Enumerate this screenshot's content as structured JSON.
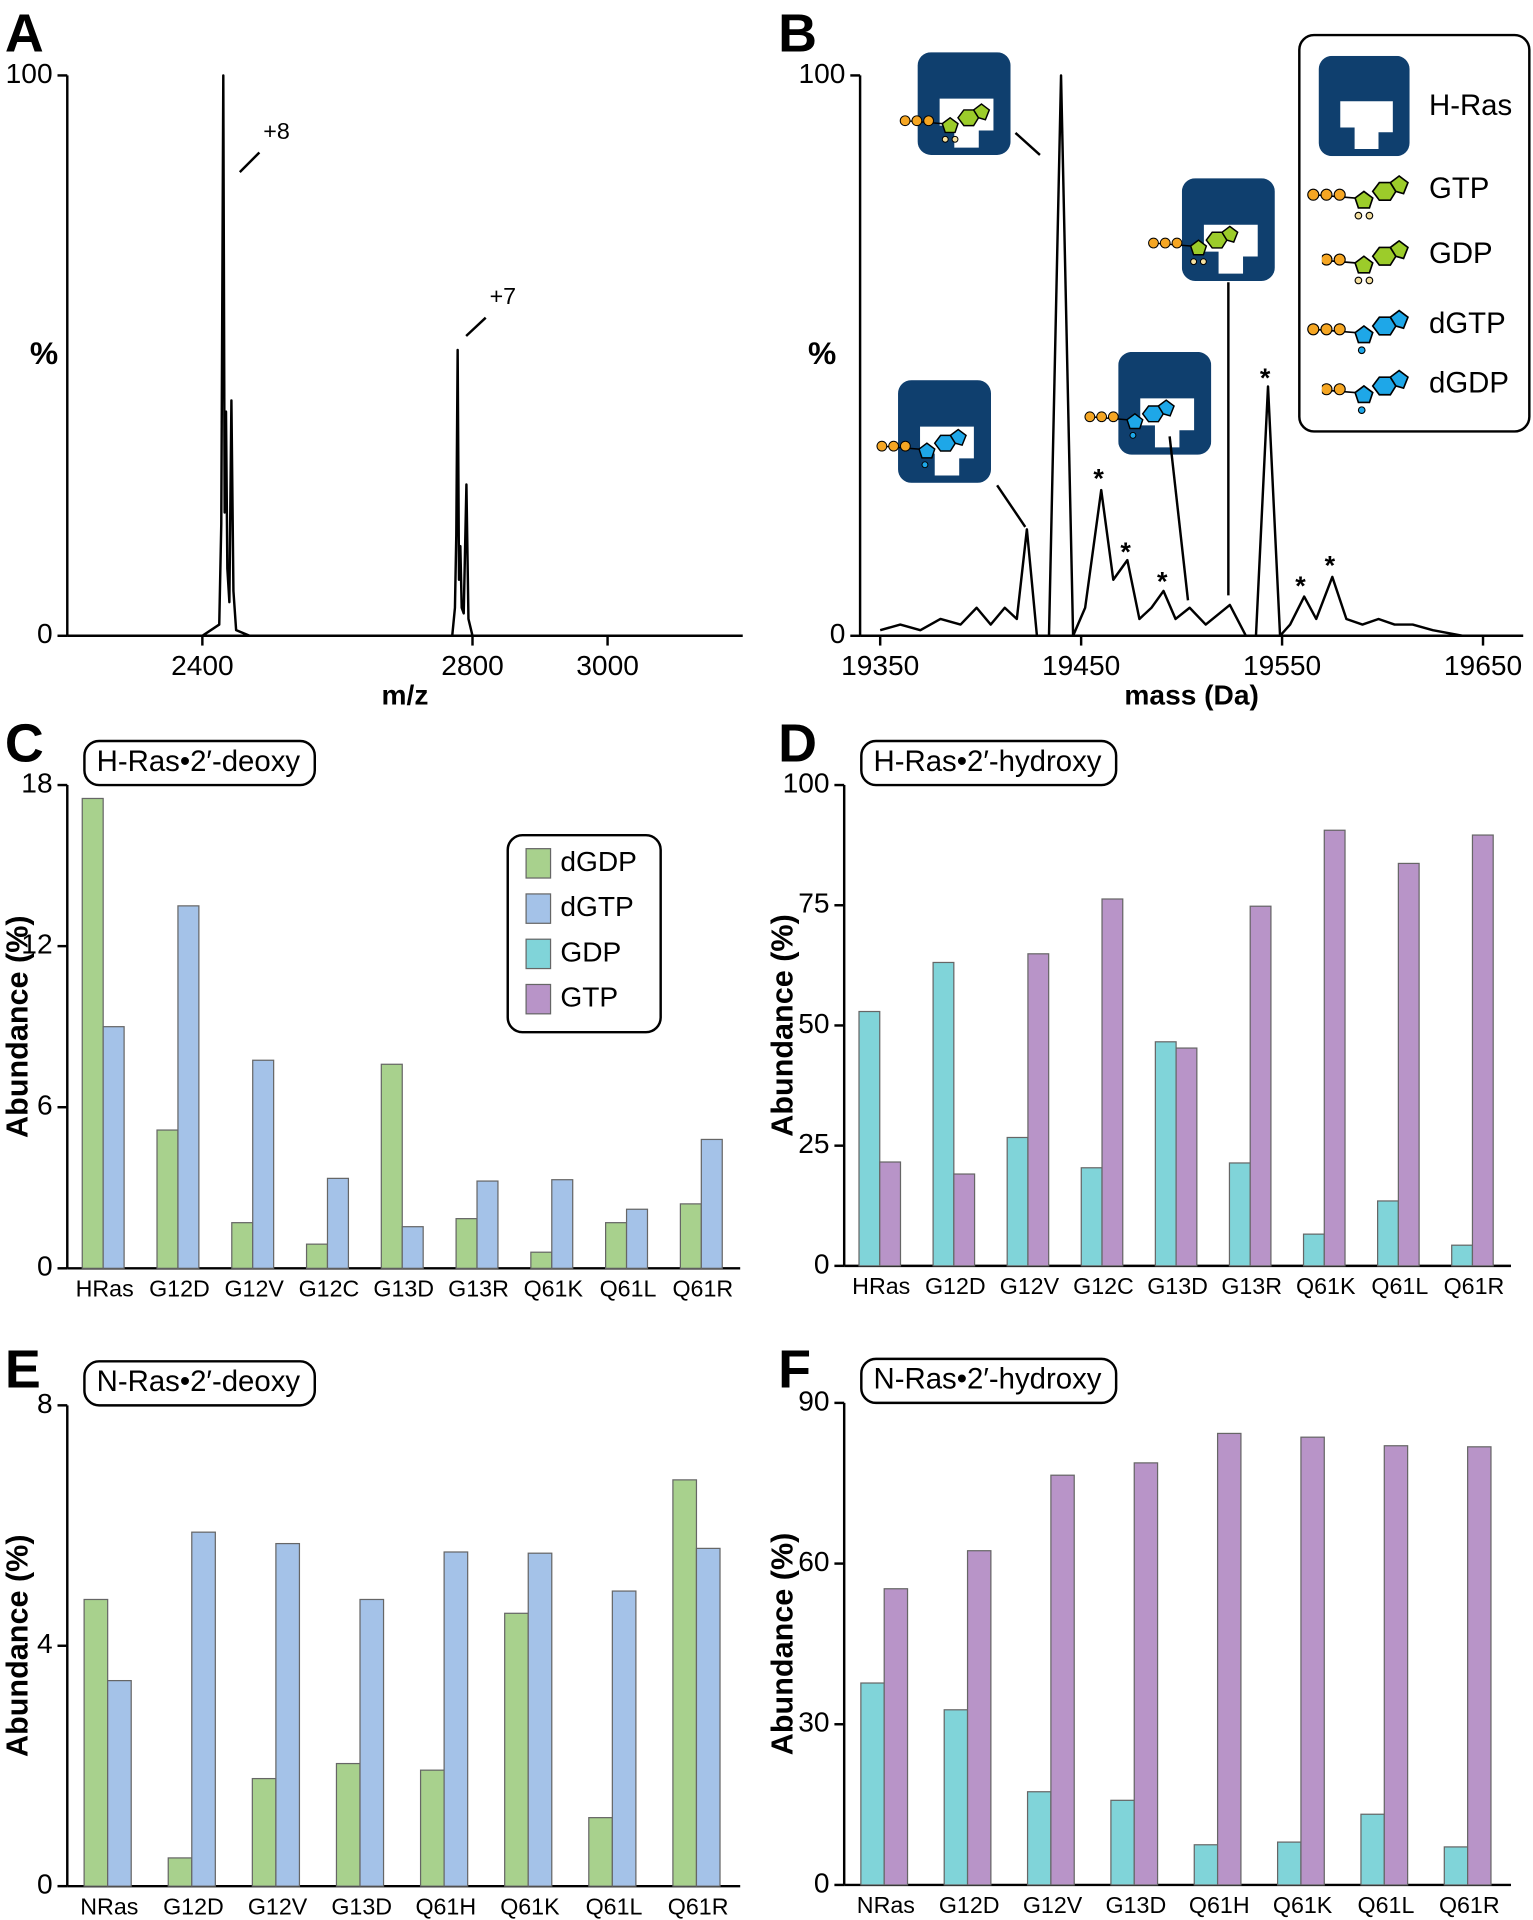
{
  "chart_data": [
    {
      "type": "line",
      "panel": "A",
      "xlabel": "m/z",
      "ylabel": "%",
      "x": [
        2200,
        2400,
        2425,
        2428,
        2431,
        2433,
        2435,
        2437,
        2440,
        2443,
        2446,
        2450,
        2470,
        2600,
        2770,
        2774,
        2776,
        2778,
        2780,
        2782,
        2784,
        2787,
        2791,
        2794,
        2800,
        3000,
        3200
      ],
      "values": [
        0,
        0,
        2,
        20,
        100,
        22,
        40,
        12,
        6,
        42,
        8,
        1,
        0,
        0,
        0,
        5,
        18,
        51,
        10,
        16,
        5,
        4,
        27,
        3,
        0,
        0,
        0
      ],
      "color": "#000000",
      "xlim": [
        2200,
        3200
      ],
      "xticks": [
        2400,
        2800,
        3000
      ],
      "ylim": [
        0,
        100
      ],
      "yticks": [
        0,
        100
      ],
      "annotations": [
        "+8",
        "+7"
      ]
    },
    {
      "type": "line",
      "panel": "B",
      "xlabel": "mass (Da)",
      "ylabel": "%",
      "x": [
        19350,
        19360,
        19370,
        19380,
        19390,
        19398,
        19405,
        19412,
        19418,
        19423,
        19428,
        19434,
        19440,
        19446,
        19452,
        19460,
        19466,
        19473,
        19479,
        19485,
        19491,
        19497,
        19504,
        19512,
        19524,
        19532,
        19537,
        19543,
        19549,
        19554,
        19561,
        19567,
        19575,
        19582,
        19590,
        19598,
        19606,
        19615,
        19625,
        19640,
        19650
      ],
      "values": [
        1,
        2,
        1,
        3,
        2,
        5,
        2,
        5,
        3,
        19,
        0,
        0,
        100,
        0,
        5,
        26,
        10,
        13.5,
        3,
        5,
        8,
        3,
        5,
        2,
        5.5,
        0,
        0,
        44.5,
        0,
        2,
        7,
        3,
        10.5,
        3,
        2,
        3,
        2,
        2,
        1,
        0,
        0
      ],
      "color": "#000000",
      "xlim": [
        19340,
        19670
      ],
      "xticks": [
        19350,
        19450,
        19550,
        19650
      ],
      "ylim": [
        0,
        100
      ],
      "yticks": [
        0,
        100
      ],
      "legend": [
        "H-Ras",
        "GTP",
        "GDP",
        "dGTP",
        "dGDP"
      ],
      "annotations": [
        "*",
        "*",
        "*",
        "*",
        "*",
        "*"
      ]
    },
    {
      "type": "bar",
      "panel": "C",
      "title": "H-Ras•2′-deoxy",
      "ylabel": "Abundance (%)",
      "categories": [
        "HRas",
        "G12D",
        "G12V",
        "G12C",
        "G13D",
        "G13R",
        "Q61K",
        "Q61L",
        "Q61R"
      ],
      "series": [
        {
          "name": "dGDP",
          "color": "#a8d18d",
          "values": [
            17.5,
            5.15,
            1.7,
            0.9,
            7.6,
            1.85,
            0.6,
            1.7,
            2.4
          ]
        },
        {
          "name": "dGTP",
          "color": "#a4c2e8",
          "values": [
            9.0,
            13.5,
            7.75,
            3.35,
            1.55,
            3.25,
            3.3,
            2.2,
            4.8
          ]
        }
      ],
      "ylim": [
        0,
        18
      ],
      "yticks": [
        0,
        6,
        12,
        18
      ]
    },
    {
      "type": "bar",
      "panel": "D",
      "title": "H-Ras•2′-hydroxy",
      "ylabel": "Abundance (%)",
      "categories": [
        "HRas",
        "G12D",
        "G12V",
        "G12C",
        "G13D",
        "G13R",
        "Q61K",
        "Q61L",
        "Q61R"
      ],
      "series": [
        {
          "name": "GDP",
          "color": "#80d4d9",
          "values": [
            52.9,
            63.1,
            26.7,
            20.4,
            46.6,
            21.4,
            6.6,
            13.5,
            4.3
          ]
        },
        {
          "name": "GTP",
          "color": "#b894c8",
          "values": [
            21.6,
            19.1,
            64.9,
            76.3,
            45.3,
            74.8,
            90.6,
            83.7,
            89.6
          ]
        }
      ],
      "ylim": [
        0,
        100
      ],
      "yticks": [
        0,
        25,
        50,
        75,
        100
      ]
    },
    {
      "type": "bar",
      "panel": "E",
      "title": "N-Ras•2′-deoxy",
      "ylabel": "Abundance (%)",
      "categories": [
        "NRas",
        "G12D",
        "G12V",
        "G13D",
        "Q61H",
        "Q61K",
        "Q61L",
        "Q61R"
      ],
      "series": [
        {
          "color": "#a8d18d",
          "values": [
            4.77,
            0.47,
            1.79,
            2.04,
            1.93,
            4.54,
            1.14,
            6.76
          ]
        },
        {
          "color": "#a4c2e8",
          "values": [
            3.42,
            5.89,
            5.7,
            4.77,
            5.56,
            5.54,
            4.91,
            5.62
          ]
        }
      ],
      "ylim": [
        0,
        8
      ],
      "yticks": [
        0,
        4,
        8
      ]
    },
    {
      "type": "bar",
      "panel": "F",
      "title": "N-Ras•2′-hydroxy",
      "ylabel": "Abundance (%)",
      "categories": [
        "NRas",
        "G12D",
        "G12V",
        "G13D",
        "Q61H",
        "Q61K",
        "Q61L",
        "Q61R"
      ],
      "series": [
        {
          "color": "#80d4d9",
          "values": [
            37.7,
            32.7,
            17.4,
            15.8,
            7.5,
            8.0,
            13.2,
            7.1
          ]
        },
        {
          "color": "#b894c8",
          "values": [
            55.3,
            62.4,
            76.5,
            78.8,
            84.3,
            83.6,
            82.0,
            81.8
          ]
        }
      ],
      "ylim": [
        0,
        90
      ],
      "yticks": [
        0,
        30,
        60,
        90
      ]
    }
  ]
}
